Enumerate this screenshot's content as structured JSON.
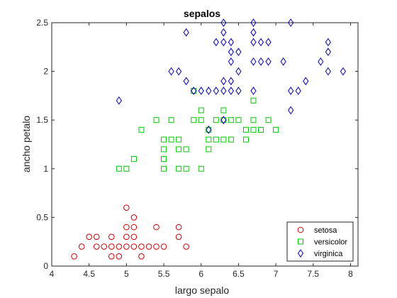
{
  "chart_data": {
    "type": "scatter",
    "title": "sepalos",
    "xlabel": "largo sepalo",
    "ylabel": "ancho petalo",
    "xlim": [
      4,
      8.1
    ],
    "ylim": [
      0,
      2.5
    ],
    "xticks": [
      4,
      4.5,
      5,
      5.5,
      6,
      6.5,
      7,
      7.5,
      8
    ],
    "yticks": [
      0,
      0.5,
      1,
      1.5,
      2,
      2.5
    ],
    "xtick_labels": [
      "4",
      "4.5",
      "5",
      "5.5",
      "6",
      "6.5",
      "7",
      "7.5",
      "8"
    ],
    "ytick_labels": [
      "0",
      "0.5",
      "1",
      "1.5",
      "2",
      "2.5"
    ],
    "grid": false,
    "legend_position": "bottom-right",
    "series": [
      {
        "name": "setosa",
        "marker": "circle",
        "color": "#cc0000",
        "points": [
          [
            4.3,
            0.1
          ],
          [
            4.4,
            0.2
          ],
          [
            4.5,
            0.3
          ],
          [
            4.6,
            0.3
          ],
          [
            4.6,
            0.2
          ],
          [
            4.7,
            0.2
          ],
          [
            4.8,
            0.3
          ],
          [
            4.8,
            0.2
          ],
          [
            4.8,
            0.1
          ],
          [
            4.9,
            0.2
          ],
          [
            4.9,
            0.1
          ],
          [
            5.0,
            0.6
          ],
          [
            5.0,
            0.4
          ],
          [
            5.0,
            0.3
          ],
          [
            5.0,
            0.2
          ],
          [
            5.1,
            0.5
          ],
          [
            5.1,
            0.4
          ],
          [
            5.1,
            0.3
          ],
          [
            5.1,
            0.2
          ],
          [
            5.2,
            0.2
          ],
          [
            5.2,
            0.1
          ],
          [
            5.3,
            0.2
          ],
          [
            5.4,
            0.4
          ],
          [
            5.4,
            0.2
          ],
          [
            5.5,
            0.2
          ],
          [
            5.7,
            0.4
          ],
          [
            5.7,
            0.3
          ],
          [
            5.8,
            0.2
          ]
        ]
      },
      {
        "name": "versicolor",
        "marker": "square",
        "color": "#00cc00",
        "points": [
          [
            4.9,
            1.0
          ],
          [
            5.0,
            1.0
          ],
          [
            5.1,
            1.1
          ],
          [
            5.2,
            1.4
          ],
          [
            5.4,
            1.5
          ],
          [
            5.5,
            1.3
          ],
          [
            5.5,
            1.2
          ],
          [
            5.5,
            1.1
          ],
          [
            5.5,
            1.0
          ],
          [
            5.6,
            1.5
          ],
          [
            5.6,
            1.3
          ],
          [
            5.7,
            1.3
          ],
          [
            5.7,
            1.2
          ],
          [
            5.7,
            1.0
          ],
          [
            5.8,
            1.2
          ],
          [
            5.8,
            1.0
          ],
          [
            5.9,
            1.5
          ],
          [
            5.9,
            1.8
          ],
          [
            6.0,
            1.6
          ],
          [
            6.0,
            1.5
          ],
          [
            6.0,
            1.0
          ],
          [
            6.1,
            1.4
          ],
          [
            6.1,
            1.3
          ],
          [
            6.1,
            1.2
          ],
          [
            6.2,
            1.5
          ],
          [
            6.2,
            1.3
          ],
          [
            6.3,
            1.6
          ],
          [
            6.3,
            1.5
          ],
          [
            6.3,
            1.3
          ],
          [
            6.4,
            1.5
          ],
          [
            6.4,
            1.3
          ],
          [
            6.5,
            1.5
          ],
          [
            6.6,
            1.4
          ],
          [
            6.6,
            1.3
          ],
          [
            6.7,
            1.7
          ],
          [
            6.7,
            1.5
          ],
          [
            6.7,
            1.4
          ],
          [
            6.8,
            1.4
          ],
          [
            6.9,
            1.5
          ],
          [
            7.0,
            1.4
          ]
        ]
      },
      {
        "name": "virginica",
        "marker": "diamond",
        "color": "#0000aa",
        "points": [
          [
            4.9,
            1.7
          ],
          [
            5.6,
            2.0
          ],
          [
            5.7,
            2.0
          ],
          [
            5.8,
            2.4
          ],
          [
            5.8,
            1.9
          ],
          [
            5.9,
            1.8
          ],
          [
            6.0,
            1.8
          ],
          [
            6.1,
            1.8
          ],
          [
            6.1,
            1.4
          ],
          [
            6.2,
            2.3
          ],
          [
            6.2,
            1.8
          ],
          [
            6.3,
            2.5
          ],
          [
            6.3,
            2.4
          ],
          [
            6.3,
            2.3
          ],
          [
            6.3,
            1.9
          ],
          [
            6.3,
            1.8
          ],
          [
            6.3,
            1.5
          ],
          [
            6.4,
            2.3
          ],
          [
            6.4,
            2.2
          ],
          [
            6.4,
            2.1
          ],
          [
            6.4,
            1.9
          ],
          [
            6.4,
            1.8
          ],
          [
            6.5,
            2.2
          ],
          [
            6.5,
            2.0
          ],
          [
            6.5,
            1.8
          ],
          [
            6.7,
            2.5
          ],
          [
            6.7,
            2.4
          ],
          [
            6.7,
            2.3
          ],
          [
            6.7,
            2.1
          ],
          [
            6.7,
            1.8
          ],
          [
            6.8,
            2.3
          ],
          [
            6.8,
            2.1
          ],
          [
            6.9,
            2.3
          ],
          [
            6.9,
            2.1
          ],
          [
            7.1,
            2.1
          ],
          [
            7.2,
            2.5
          ],
          [
            7.2,
            1.8
          ],
          [
            7.2,
            1.6
          ],
          [
            7.3,
            1.8
          ],
          [
            7.4,
            1.9
          ],
          [
            7.6,
            2.1
          ],
          [
            7.7,
            2.3
          ],
          [
            7.7,
            2.2
          ],
          [
            7.7,
            2.0
          ],
          [
            7.9,
            2.0
          ]
        ]
      }
    ]
  }
}
